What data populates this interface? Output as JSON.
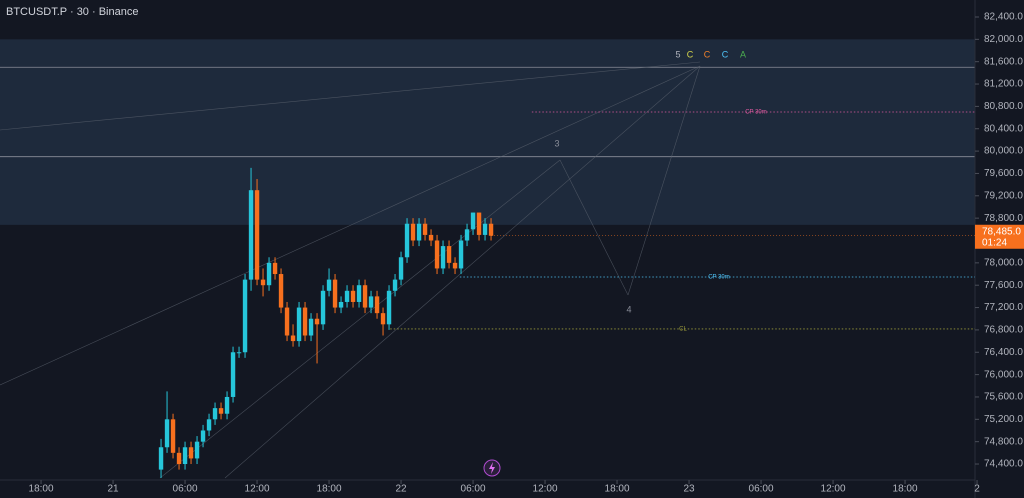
{
  "chart_data": {
    "type": "candlestick",
    "title": "BTCUSDT.P · 30 · Binance",
    "x": [
      4,
      4.5,
      5,
      5.5,
      6,
      6.5,
      7,
      7.5,
      8,
      8.5,
      9,
      9.5,
      10,
      10.5,
      11,
      11.5,
      12,
      12.5,
      13,
      13.5,
      14,
      14.5,
      15,
      15.5,
      16,
      16.5,
      17,
      17.5,
      18,
      18.5,
      19,
      19.5,
      20,
      20.5,
      21,
      21.5,
      22,
      22.5,
      23,
      23.5,
      24,
      24.5,
      25,
      25.5,
      26,
      26.5,
      27,
      27.5,
      28,
      28.5,
      29,
      29.5,
      30,
      30.5,
      31,
      31.5
    ],
    "open": [
      74300,
      74700,
      75200,
      74600,
      74400,
      74700,
      74500,
      74800,
      75000,
      75200,
      75400,
      75300,
      75600,
      76400,
      76400,
      77700,
      79300,
      77700,
      77600,
      78000,
      77800,
      77200,
      76700,
      76600,
      77200,
      76700,
      77000,
      76900,
      77500,
      77700,
      77200,
      77300,
      77500,
      77300,
      77600,
      77200,
      77400,
      77100,
      76900,
      77500,
      77700,
      78100,
      78700,
      78400,
      78700,
      78500,
      78400,
      77900,
      78300,
      78000,
      77900,
      78400,
      78600,
      78900,
      78500,
      78700
    ],
    "high": [
      74850,
      75700,
      75300,
      74700,
      74800,
      74800,
      74900,
      75100,
      75300,
      75500,
      75500,
      75700,
      76500,
      76500,
      77800,
      79700,
      79500,
      77900,
      78100,
      78100,
      77900,
      77300,
      76900,
      77300,
      77300,
      77100,
      77100,
      77600,
      77900,
      77800,
      77400,
      77600,
      77600,
      77700,
      77700,
      77500,
      77500,
      77200,
      77600,
      77800,
      78200,
      78800,
      78800,
      78800,
      78800,
      78600,
      78500,
      78400,
      78400,
      78100,
      78500,
      78700,
      78900,
      78900,
      78800,
      78800
    ],
    "low": [
      74150,
      74600,
      74500,
      74300,
      74300,
      74400,
      74400,
      74700,
      74900,
      75100,
      75200,
      75200,
      75500,
      76300,
      76300,
      77500,
      77600,
      77400,
      77500,
      77700,
      77100,
      76600,
      76500,
      76500,
      76600,
      76600,
      76200,
      76800,
      77400,
      77100,
      77100,
      77200,
      77200,
      77200,
      77100,
      77100,
      77000,
      76700,
      76800,
      77400,
      77600,
      78000,
      78300,
      78300,
      78400,
      78300,
      77800,
      77800,
      77900,
      77800,
      77800,
      78300,
      78500,
      78400,
      78400,
      78400
    ],
    "close": [
      74700,
      75200,
      74600,
      74400,
      74700,
      74500,
      74800,
      75000,
      75200,
      75400,
      75300,
      75600,
      76400,
      76400,
      77700,
      79300,
      77700,
      77600,
      78000,
      77800,
      77200,
      76700,
      76600,
      77200,
      76700,
      77000,
      76900,
      77500,
      77700,
      77200,
      77300,
      77500,
      77300,
      77600,
      77200,
      77400,
      77100,
      76900,
      77500,
      77700,
      78100,
      78700,
      78400,
      78700,
      78500,
      78400,
      77900,
      78300,
      78000,
      77900,
      78400,
      78600,
      78900,
      78500,
      78700,
      78485
    ],
    "up_color": "#26c6da",
    "down_color": "#f7701e",
    "last_price_label": "78,485.0",
    "countdown": "01:24",
    "xlim": [
      -9.42,
      71.83
    ],
    "xticks": [
      {
        "value": -6,
        "label": "18:00"
      },
      {
        "value": 0,
        "label": "21"
      },
      {
        "value": 6,
        "label": "06:00"
      },
      {
        "value": 12,
        "label": "12:00"
      },
      {
        "value": 18,
        "label": "18:00"
      },
      {
        "value": 24,
        "label": "22"
      },
      {
        "value": 30,
        "label": "06:00"
      },
      {
        "value": 36,
        "label": "12:00"
      },
      {
        "value": 42,
        "label": "18:00"
      },
      {
        "value": 48,
        "label": "23"
      },
      {
        "value": 54,
        "label": "06:00"
      },
      {
        "value": 60,
        "label": "12:00"
      },
      {
        "value": 66,
        "label": "18:00"
      },
      {
        "value": 72,
        "label": "2"
      }
    ],
    "ylim": [
      74114,
      82704
    ],
    "yticks": [
      {
        "value": 74400,
        "label": "74,400.0"
      },
      {
        "value": 74800,
        "label": "74,800.0"
      },
      {
        "value": 75200,
        "label": "75,200.0"
      },
      {
        "value": 75600,
        "label": "75,600.0"
      },
      {
        "value": 76000,
        "label": "76,000.0"
      },
      {
        "value": 76400,
        "label": "76,400.0"
      },
      {
        "value": 76800,
        "label": "76,800.0"
      },
      {
        "value": 77200,
        "label": "77,200.0"
      },
      {
        "value": 77600,
        "label": "77,600.0"
      },
      {
        "value": 78000,
        "label": "78,000.0"
      },
      {
        "value": 78400,
        "label": "78,400.0"
      },
      {
        "value": 78800,
        "label": "78,800.0"
      },
      {
        "value": 79200,
        "label": "79,200.0"
      },
      {
        "value": 79600,
        "label": "79,600.0"
      },
      {
        "value": 80000,
        "label": "80,000.0"
      },
      {
        "value": 80400,
        "label": "80,400.0"
      },
      {
        "value": 80800,
        "label": "80,800.0"
      },
      {
        "value": 81200,
        "label": "81,200.0"
      },
      {
        "value": 81600,
        "label": "81,600.0"
      },
      {
        "value": 82000,
        "label": "82,000.0"
      },
      {
        "value": 82400,
        "label": "82,400.0"
      }
    ],
    "grid": false,
    "zone": [
      78680,
      82000
    ],
    "levels": [
      81500,
      79900
    ],
    "lines": [
      {
        "name": "CP 30m",
        "value": 80700,
        "color": "#e05aa0",
        "x": 34.9
      },
      {
        "name": "CP 30m",
        "value": 77747,
        "color": "#4fc3f7",
        "x": 28.9
      },
      {
        "name": "CL",
        "value": 76817,
        "color": "#9a9a3a",
        "x": 23.1
      }
    ],
    "annotations": [
      {
        "text": "5",
        "color": "#b2b5be"
      },
      {
        "text": "C",
        "color": "#d4d44c"
      },
      {
        "text": "C",
        "color": "#f0802a"
      },
      {
        "text": "C",
        "color": "#4fc3f7"
      },
      {
        "text": "A",
        "color": "#4caf50"
      },
      {
        "text": "3",
        "color": "#8a8e99"
      },
      {
        "text": "4",
        "color": "#8a8e99"
      }
    ]
  }
}
